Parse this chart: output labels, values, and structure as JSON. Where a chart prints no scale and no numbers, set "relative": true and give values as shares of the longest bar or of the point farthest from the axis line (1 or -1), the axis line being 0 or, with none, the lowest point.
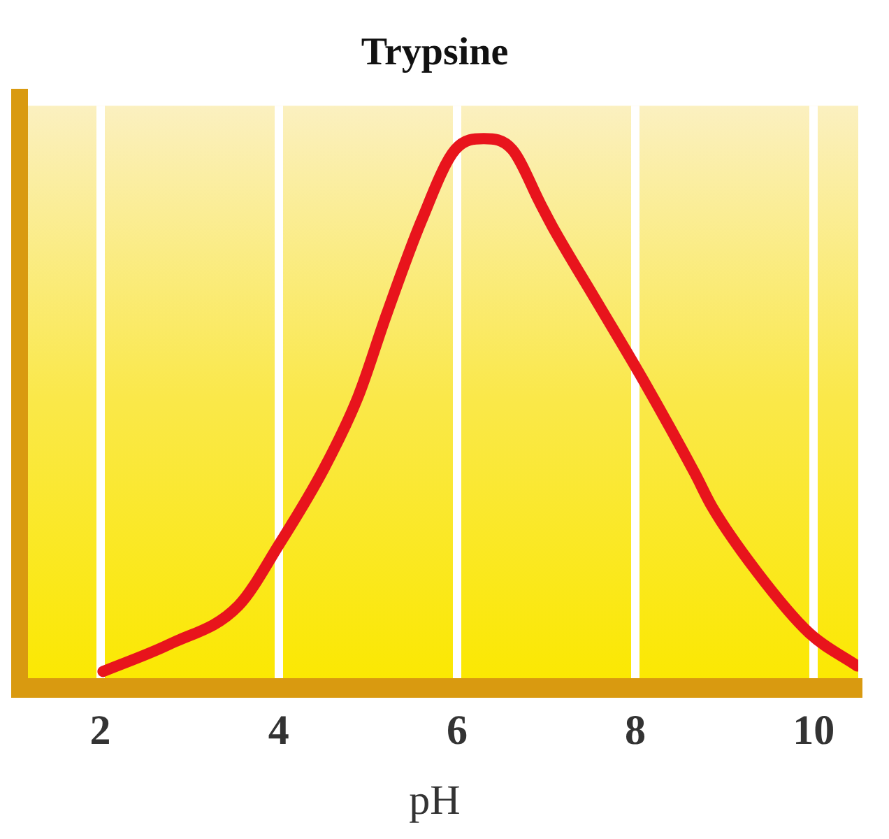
{
  "chart_data": {
    "type": "line",
    "title": "Trypsine",
    "xlabel": "pH",
    "relative": true,
    "x": [
      2.03,
      2.78,
      3.55,
      4.0,
      4.51,
      4.89,
      5.21,
      5.6,
      5.98,
      6.3,
      6.62,
      6.94,
      7.07,
      7.58,
      8.09,
      8.67,
      8.86,
      9.37,
      9.95,
      10.49
    ],
    "series": [
      {
        "color": "#e8141c",
        "values": [
          0.03,
          0.08,
          0.15,
          0.26,
          0.4,
          0.53,
          0.68,
          0.85,
          0.98,
          1.0,
          0.98,
          0.88,
          0.84,
          0.7,
          0.56,
          0.39,
          0.33,
          0.21,
          0.1,
          0.04
        ]
      }
    ],
    "xlim": [
      1,
      10.5
    ],
    "xticks": [
      2,
      4,
      6,
      8,
      10
    ],
    "grid": "x",
    "legend": false,
    "marker": "none",
    "line_style": "solid"
  }
}
